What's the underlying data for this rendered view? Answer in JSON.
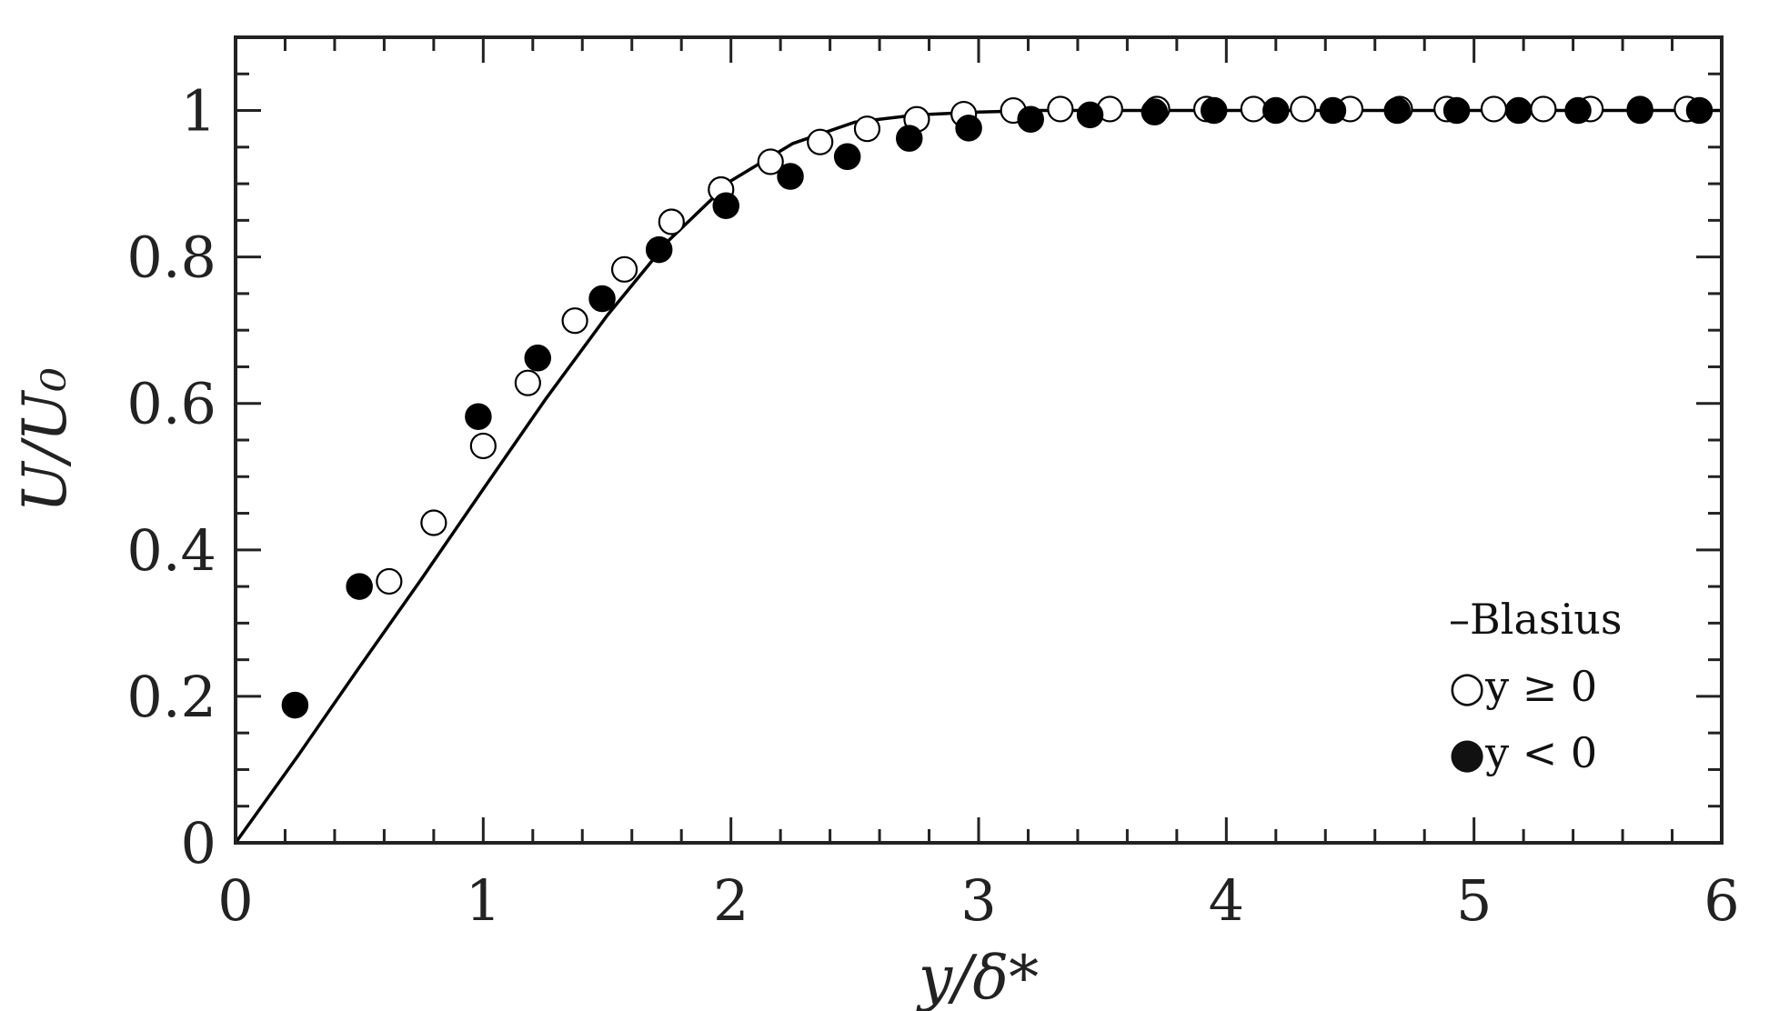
{
  "chart_data": {
    "type": "scatter",
    "title": "",
    "xlabel": "y/δ*",
    "ylabel": "U/U₀",
    "xlim": [
      0,
      6
    ],
    "ylim": [
      0,
      1.1
    ],
    "x_ticks": [
      "0",
      "1",
      "2",
      "3",
      "4",
      "5",
      "6"
    ],
    "y_ticks": [
      "0",
      "0.2",
      "0.4",
      "0.6",
      "0.8",
      "1"
    ],
    "grid": false,
    "legend_position": "bottom-right",
    "legend": [
      {
        "label": "–Blasius"
      },
      {
        "label": "○y ≥ 0"
      },
      {
        "label": "●y < 0"
      }
    ],
    "series": [
      {
        "name": "Blasius",
        "style": "line",
        "color": "#000000",
        "x": [
          0,
          0.25,
          0.5,
          0.75,
          1.0,
          1.25,
          1.5,
          1.75,
          2.0,
          2.25,
          2.5,
          2.75,
          3.0,
          3.25,
          3.5,
          4.0,
          5.0,
          6.0
        ],
        "y": [
          0,
          0.118,
          0.24,
          0.36,
          0.483,
          0.605,
          0.72,
          0.823,
          0.904,
          0.955,
          0.984,
          0.994,
          0.998,
          1.0,
          1.0,
          1.0,
          1.0,
          1.0
        ]
      },
      {
        "name": "y ≥ 0",
        "style": "open-circle",
        "color": "#000000",
        "x": [
          0.62,
          0.8,
          1.0,
          1.18,
          1.37,
          1.57,
          1.76,
          1.96,
          2.16,
          2.36,
          2.55,
          2.75,
          2.94,
          3.14,
          3.33,
          3.53,
          3.72,
          3.92,
          4.11,
          4.31,
          4.5,
          4.7,
          4.89,
          5.08,
          5.28,
          5.47,
          5.67,
          5.86
        ],
        "y": [
          0.357,
          0.437,
          0.542,
          0.628,
          0.713,
          0.783,
          0.848,
          0.892,
          0.93,
          0.957,
          0.975,
          0.988,
          0.995,
          1.0,
          1.002,
          1.002,
          1.002,
          1.002,
          1.002,
          1.002,
          1.002,
          1.002,
          1.002,
          1.002,
          1.002,
          1.002,
          1.002,
          1.002
        ]
      },
      {
        "name": "y < 0",
        "style": "filled-circle",
        "color": "#000000",
        "x": [
          0.24,
          0.5,
          0.98,
          1.22,
          1.48,
          1.71,
          1.98,
          2.24,
          2.47,
          2.72,
          2.96,
          3.21,
          3.45,
          3.71,
          3.95,
          4.2,
          4.43,
          4.69,
          4.93,
          5.18,
          5.42,
          5.67,
          5.91
        ],
        "y": [
          0.188,
          0.35,
          0.582,
          0.662,
          0.743,
          0.81,
          0.87,
          0.91,
          0.937,
          0.962,
          0.976,
          0.988,
          0.994,
          0.998,
          1.0,
          1.0,
          1.0,
          1.0,
          1.0,
          1.0,
          1.0,
          1.0,
          1.0
        ]
      }
    ]
  }
}
